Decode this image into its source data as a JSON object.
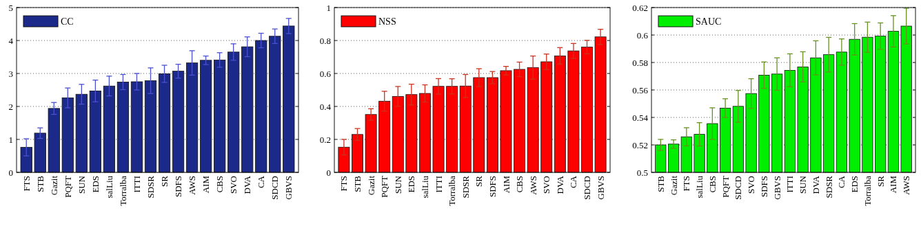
{
  "chart_data": [
    {
      "type": "bar",
      "categories": [
        "FTS",
        "STB",
        "Gazit",
        "PQFT",
        "SUN",
        "EDS",
        "salLiu",
        "Torralba",
        "ITTI",
        "SDSR",
        "SR",
        "SDFS",
        "AWS",
        "AIM",
        "CBS",
        "SVO",
        "DVA",
        "CA",
        "SDCD",
        "GBVS"
      ],
      "series": [
        {
          "name": "CC",
          "color": "#1b2a8a",
          "values": [
            0.76,
            1.19,
            1.94,
            2.26,
            2.37,
            2.47,
            2.62,
            2.74,
            2.75,
            2.78,
            2.99,
            3.07,
            3.32,
            3.4,
            3.41,
            3.65,
            3.81,
            4.0,
            4.13,
            4.44
          ],
          "errors": [
            0.26,
            0.16,
            0.18,
            0.3,
            0.3,
            0.33,
            0.3,
            0.23,
            0.25,
            0.39,
            0.26,
            0.21,
            0.37,
            0.13,
            0.22,
            0.25,
            0.3,
            0.22,
            0.22,
            0.23
          ]
        }
      ],
      "ylim": [
        0,
        5
      ],
      "yticks": [
        0,
        1,
        2,
        3,
        4,
        5
      ],
      "grid": "y",
      "legend": "top left"
    },
    {
      "type": "bar",
      "categories": [
        "FTS",
        "STB",
        "Gazit",
        "PQFT",
        "SUN",
        "EDS",
        "salLiu",
        "ITTI",
        "Torralba",
        "SDSR",
        "SR",
        "SDFS",
        "AIM",
        "CBS",
        "AWS",
        "SVO",
        "DVA",
        "CA",
        "SDCD",
        "GBVS"
      ],
      "series": [
        {
          "name": "NSS",
          "color": "#ff0000",
          "values": [
            0.153,
            0.23,
            0.351,
            0.432,
            0.461,
            0.472,
            0.479,
            0.522,
            0.522,
            0.524,
            0.575,
            0.575,
            0.617,
            0.625,
            0.636,
            0.671,
            0.707,
            0.737,
            0.76,
            0.822
          ],
          "errors": [
            0.047,
            0.036,
            0.035,
            0.06,
            0.06,
            0.063,
            0.052,
            0.047,
            0.046,
            0.07,
            0.054,
            0.037,
            0.026,
            0.044,
            0.07,
            0.047,
            0.05,
            0.045,
            0.041,
            0.046
          ]
        }
      ],
      "ylim": [
        0,
        1
      ],
      "yticks": [
        0,
        0.2,
        0.4,
        0.6,
        0.8,
        1
      ],
      "grid": "y",
      "legend": "top left"
    },
    {
      "type": "bar",
      "categories": [
        "STB",
        "Gazit",
        "FTS",
        "salLiu",
        "CBS",
        "PQFT",
        "SDCD",
        "SVO",
        "SDFS",
        "GBVS",
        "ITTI",
        "SUN",
        "DVA",
        "SDSR",
        "CA",
        "EDS",
        "Torralba",
        "SR",
        "AIM",
        "AWS"
      ],
      "series": [
        {
          "name": "SAUC",
          "color": "#00ee00",
          "values": [
            0.52,
            0.5206,
            0.5259,
            0.5277,
            0.5355,
            0.5468,
            0.5481,
            0.5574,
            0.5708,
            0.5716,
            0.5743,
            0.5768,
            0.5834,
            0.5857,
            0.5876,
            0.5969,
            0.5984,
            0.5992,
            0.6027,
            0.6065
          ],
          "errors": [
            0.004,
            0.0031,
            0.0066,
            0.0085,
            0.0115,
            0.0068,
            0.0116,
            0.0108,
            0.0096,
            0.0118,
            0.012,
            0.011,
            0.0124,
            0.0126,
            0.0096,
            0.0114,
            0.011,
            0.0096,
            0.0114,
            0.013
          ]
        }
      ],
      "ylim": [
        0.5,
        0.62
      ],
      "yticks": [
        0.5,
        0.52,
        0.54,
        0.56,
        0.58,
        0.6,
        0.62
      ],
      "grid": "y",
      "legend": "top left"
    }
  ]
}
